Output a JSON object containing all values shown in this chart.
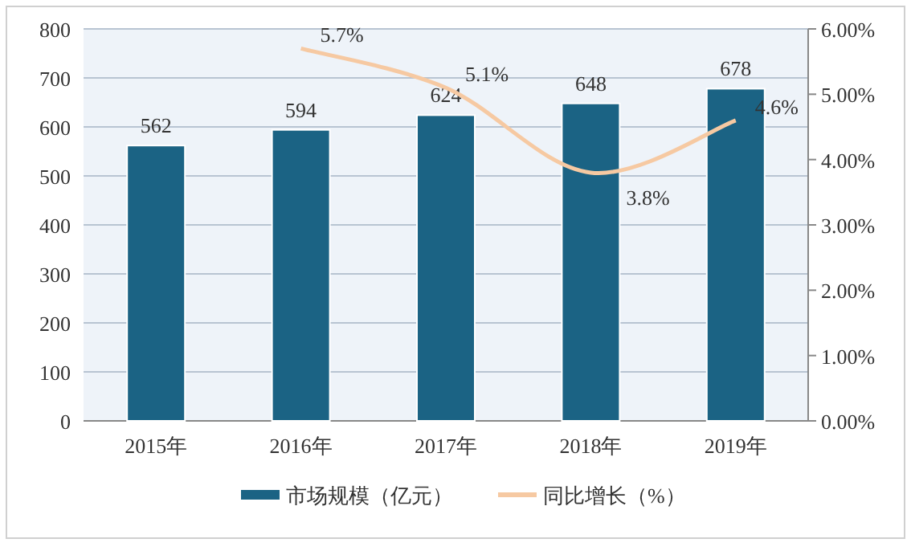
{
  "chart_data": {
    "type": "bar",
    "categories": [
      "2015年",
      "2016年",
      "2017年",
      "2018年",
      "2019年"
    ],
    "series": [
      {
        "name": "市场规模（亿元）",
        "color": "#1b6384",
        "values": [
          562,
          594,
          624,
          648,
          678
        ],
        "value_labels": [
          "562",
          "594",
          "624",
          "648",
          "678"
        ]
      },
      {
        "name": "同比增长（%）",
        "type": "line",
        "axis": "y2",
        "color": "#f6c9a2",
        "values": [
          null,
          5.7,
          5.1,
          3.8,
          4.6
        ],
        "value_labels": [
          null,
          "5.7%",
          "5.1%",
          "3.8%",
          "4.6%"
        ]
      }
    ],
    "ylim": [
      0,
      800
    ],
    "yticks": [
      0,
      100,
      200,
      300,
      400,
      500,
      600,
      700,
      800
    ],
    "y2lim": [
      0,
      6
    ],
    "y2ticks": [
      {
        "value": 0,
        "label": "0.00%"
      },
      {
        "value": 1,
        "label": "1.00%"
      },
      {
        "value": 2,
        "label": "2.00%"
      },
      {
        "value": 3,
        "label": "3.00%"
      },
      {
        "value": 4,
        "label": "4.00%"
      },
      {
        "value": 5,
        "label": "5.00%"
      },
      {
        "value": 6,
        "label": "6.00%"
      }
    ],
    "grid": "y",
    "legend": "bottom"
  }
}
